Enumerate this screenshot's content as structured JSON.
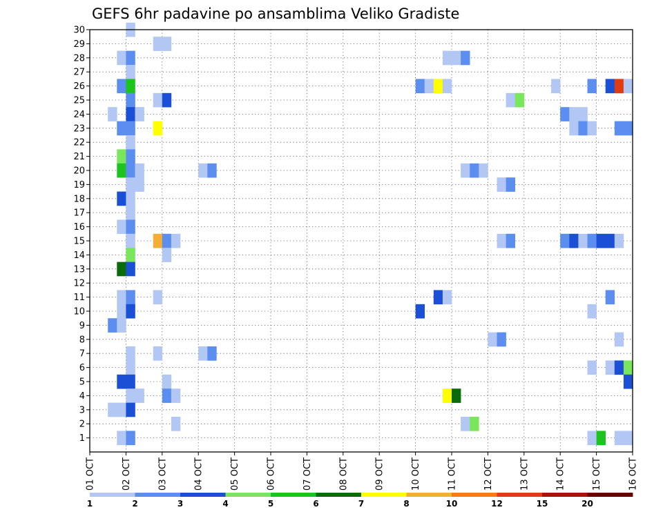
{
  "chart_data": {
    "type": "heatmap",
    "title": "GEFS 6hr padavine po ansamblima Veliko Gradiste",
    "xlabel": "",
    "ylabel": "",
    "x_ticks": [
      "01 OCT",
      "02 OCT",
      "03 OCT",
      "04 OCT",
      "05 OCT",
      "06 OCT",
      "07 OCT",
      "08 OCT",
      "09 OCT",
      "10 OCT",
      "11 OCT",
      "12 OCT",
      "13 OCT",
      "14 OCT",
      "15 OCT",
      "16 OCT"
    ],
    "xlim": [
      0,
      60
    ],
    "y_ticks": [
      1,
      2,
      3,
      4,
      5,
      6,
      7,
      8,
      9,
      10,
      11,
      12,
      13,
      14,
      15,
      16,
      17,
      18,
      19,
      20,
      21,
      22,
      23,
      24,
      25,
      26,
      27,
      28,
      29,
      30
    ],
    "ylim": [
      0,
      30
    ],
    "grid": true,
    "legend": "colorbar-bottom",
    "colorbar": {
      "labels": [
        "1",
        "2",
        "3",
        "4",
        "5",
        "6",
        "7",
        "8",
        "10",
        "12",
        "15",
        "20"
      ],
      "colors": [
        "#b3c7f5",
        "#5c8ef0",
        "#1a4fd6",
        "#7ae65c",
        "#1ec41e",
        "#0a6b0a",
        "#ffff00",
        "#f5ad36",
        "#f57a1a",
        "#e03c14",
        "#a8140a",
        "#6b0000"
      ]
    },
    "cells": [
      [
        5,
        30,
        0
      ],
      [
        8,
        29,
        0
      ],
      [
        9,
        29,
        0
      ],
      [
        4,
        28,
        0
      ],
      [
        5,
        28,
        1
      ],
      [
        40,
        28,
        0
      ],
      [
        41,
        28,
        0
      ],
      [
        42,
        28,
        1
      ],
      [
        5,
        27,
        0
      ],
      [
        4,
        26,
        1
      ],
      [
        5,
        26,
        4
      ],
      [
        37,
        26,
        1
      ],
      [
        38,
        26,
        0
      ],
      [
        39,
        26,
        6
      ],
      [
        40,
        26,
        0
      ],
      [
        52,
        26,
        0
      ],
      [
        56,
        26,
        1
      ],
      [
        58,
        26,
        2
      ],
      [
        59,
        26,
        9
      ],
      [
        60,
        26,
        0
      ],
      [
        5,
        25,
        1
      ],
      [
        8,
        25,
        0
      ],
      [
        9,
        25,
        2
      ],
      [
        47,
        25,
        0
      ],
      [
        48,
        25,
        3
      ],
      [
        3,
        24,
        0
      ],
      [
        5,
        24,
        2
      ],
      [
        6,
        24,
        0
      ],
      [
        53,
        24,
        1
      ],
      [
        54,
        24,
        0
      ],
      [
        55,
        24,
        0
      ],
      [
        4,
        23,
        1
      ],
      [
        5,
        23,
        1
      ],
      [
        8,
        23,
        6
      ],
      [
        54,
        23,
        0
      ],
      [
        55,
        23,
        1
      ],
      [
        56,
        23,
        0
      ],
      [
        59,
        23,
        1
      ],
      [
        60,
        23,
        1
      ],
      [
        5,
        22,
        0
      ],
      [
        4,
        21,
        3
      ],
      [
        5,
        21,
        1
      ],
      [
        4,
        20,
        4
      ],
      [
        5,
        20,
        1
      ],
      [
        6,
        20,
        0
      ],
      [
        13,
        20,
        0
      ],
      [
        14,
        20,
        1
      ],
      [
        42,
        20,
        0
      ],
      [
        43,
        20,
        1
      ],
      [
        44,
        20,
        0
      ],
      [
        5,
        19,
        0
      ],
      [
        6,
        19,
        0
      ],
      [
        46,
        19,
        0
      ],
      [
        47,
        19,
        1
      ],
      [
        4,
        18,
        2
      ],
      [
        5,
        18,
        0
      ],
      [
        5,
        17,
        0
      ],
      [
        4,
        16,
        0
      ],
      [
        5,
        16,
        1
      ],
      [
        5,
        15,
        0
      ],
      [
        8,
        15,
        7
      ],
      [
        9,
        15,
        1
      ],
      [
        10,
        15,
        0
      ],
      [
        46,
        15,
        0
      ],
      [
        47,
        15,
        1
      ],
      [
        53,
        15,
        1
      ],
      [
        54,
        15,
        2
      ],
      [
        55,
        15,
        0
      ],
      [
        56,
        15,
        1
      ],
      [
        57,
        15,
        2
      ],
      [
        58,
        15,
        2
      ],
      [
        59,
        15,
        0
      ],
      [
        5,
        14,
        3
      ],
      [
        9,
        14,
        0
      ],
      [
        4,
        13,
        5
      ],
      [
        5,
        13,
        2
      ],
      [
        4,
        11,
        0
      ],
      [
        5,
        11,
        1
      ],
      [
        8,
        11,
        0
      ],
      [
        39,
        11,
        2
      ],
      [
        40,
        11,
        0
      ],
      [
        58,
        11,
        1
      ],
      [
        4,
        10,
        0
      ],
      [
        5,
        10,
        2
      ],
      [
        37,
        10,
        2
      ],
      [
        56,
        10,
        0
      ],
      [
        3,
        9,
        1
      ],
      [
        4,
        9,
        0
      ],
      [
        45,
        8,
        0
      ],
      [
        46,
        8,
        1
      ],
      [
        59,
        8,
        0
      ],
      [
        5,
        7,
        0
      ],
      [
        8,
        7,
        0
      ],
      [
        13,
        7,
        0
      ],
      [
        14,
        7,
        1
      ],
      [
        5,
        6,
        0
      ],
      [
        56,
        6,
        0
      ],
      [
        58,
        6,
        0
      ],
      [
        59,
        6,
        2
      ],
      [
        60,
        6,
        3
      ],
      [
        4,
        5,
        2
      ],
      [
        5,
        5,
        2
      ],
      [
        9,
        5,
        0
      ],
      [
        60,
        5,
        2
      ],
      [
        5,
        4,
        0
      ],
      [
        6,
        4,
        0
      ],
      [
        9,
        4,
        1
      ],
      [
        10,
        4,
        0
      ],
      [
        40,
        4,
        6
      ],
      [
        41,
        4,
        5
      ],
      [
        3,
        3,
        0
      ],
      [
        4,
        3,
        0
      ],
      [
        5,
        3,
        2
      ],
      [
        10,
        2,
        0
      ],
      [
        42,
        2,
        0
      ],
      [
        43,
        2,
        3
      ],
      [
        4,
        1,
        0
      ],
      [
        5,
        1,
        1
      ],
      [
        56,
        1,
        0
      ],
      [
        57,
        1,
        4
      ],
      [
        59,
        1,
        0
      ],
      [
        60,
        1,
        0
      ]
    ]
  }
}
